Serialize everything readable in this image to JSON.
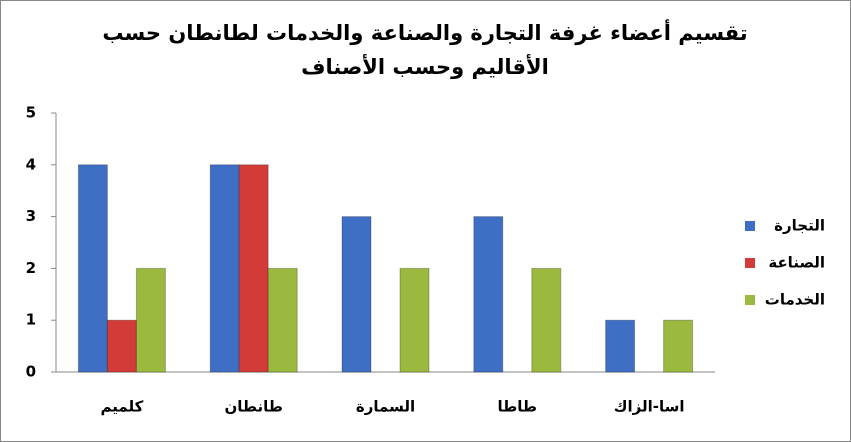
{
  "chart_data": {
    "type": "bar",
    "title": [
      "تقسيم أعضاء غرفة التجارة والصناعة والخدمات لطانطان حسب",
      "الأقاليم وحسب الأصناف"
    ],
    "categories": [
      "كلميم",
      "طانطان",
      "السمارة",
      "طاطا",
      "اسا-الزاك"
    ],
    "series": [
      {
        "name": "التجارة",
        "color": "#3f6fc4",
        "values": [
          4,
          4,
          3,
          3,
          1
        ]
      },
      {
        "name": "الصناعة",
        "color": "#d23b38",
        "values": [
          1,
          4,
          0,
          0,
          0
        ]
      },
      {
        "name": "الخدمات",
        "color": "#9ab93e",
        "values": [
          2,
          2,
          2,
          2,
          1
        ]
      }
    ],
    "ylim": [
      0,
      5
    ],
    "yticks": [
      0,
      1,
      2,
      3,
      4,
      5
    ],
    "grid": false,
    "legend": "right"
  }
}
